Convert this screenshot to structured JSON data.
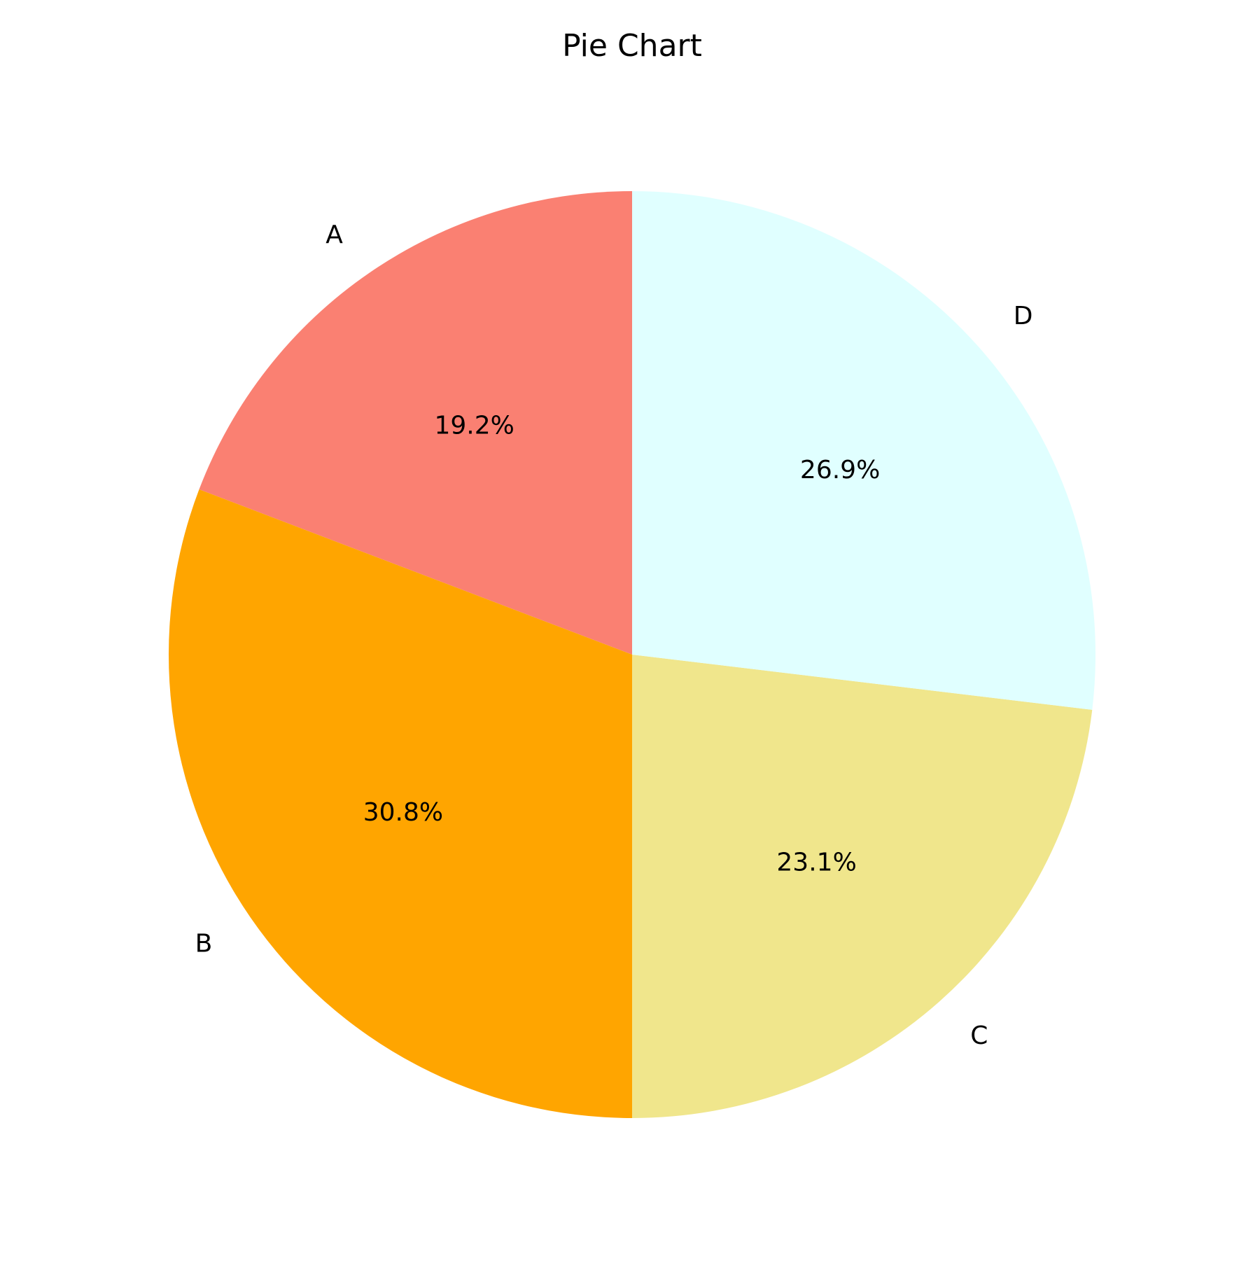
{
  "chart_data": {
    "type": "pie",
    "title": "Pie Chart",
    "start_angle_deg": 90,
    "direction": "counterclockwise",
    "slices": [
      {
        "label": "A",
        "value": 19.2,
        "pct_label": "19.2%",
        "color": "#FA8072"
      },
      {
        "label": "B",
        "value": 30.8,
        "pct_label": "30.8%",
        "color": "#FFA500"
      },
      {
        "label": "C",
        "value": 23.1,
        "pct_label": "23.1%",
        "color": "#F0E68C"
      },
      {
        "label": "D",
        "value": 26.9,
        "pct_label": "26.9%",
        "color": "#E0FFFF"
      }
    ]
  }
}
